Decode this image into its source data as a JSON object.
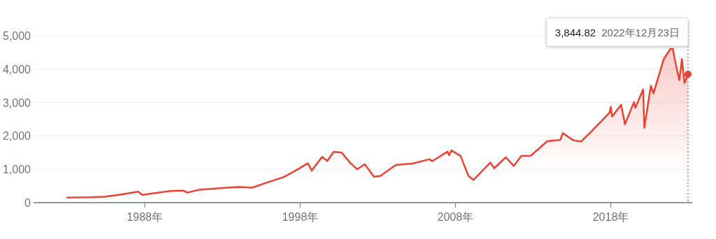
{
  "chart_data": {
    "type": "area",
    "x": [
      "1983-01",
      "1984-06",
      "1985-06",
      "1986-06",
      "1987-08",
      "1987-11",
      "1988-06",
      "1989-09",
      "1990-07",
      "1990-10",
      "1991-06",
      "1993-01",
      "1994-02",
      "1994-12",
      "1995-12",
      "1996-12",
      "1997-09",
      "1998-07",
      "1998-10",
      "1999-06",
      "1999-10",
      "2000-03",
      "2000-09",
      "2001-04",
      "2001-09",
      "2002-03",
      "2002-10",
      "2003-03",
      "2004-03",
      "2005-04",
      "2006-05",
      "2006-07",
      "2007-07",
      "2007-08",
      "2007-10",
      "2008-05",
      "2008-11",
      "2009-03",
      "2010-04",
      "2010-07",
      "2011-04",
      "2011-10",
      "2012-04",
      "2012-11",
      "2013-12",
      "2014-10",
      "2014-12",
      "2015-08",
      "2016-02",
      "2016-10",
      "2017-12",
      "2018-01",
      "2018-02",
      "2018-09",
      "2018-12",
      "2019-07",
      "2019-08",
      "2020-02",
      "2020-03",
      "2020-08",
      "2020-10",
      "2021-06",
      "2021-11",
      "2022-01",
      "2022-03",
      "2022-06",
      "2022-08",
      "2022-10",
      "2022-12-23"
    ],
    "series": [
      {
        "color": "#ea4335",
        "values": [
          150,
          160,
          180,
          240,
          330,
          230,
          270,
          350,
          360,
          300,
          380,
          440,
          470,
          450,
          610,
          760,
          950,
          1180,
          960,
          1370,
          1250,
          1520,
          1500,
          1180,
          1000,
          1150,
          780,
          800,
          1130,
          1170,
          1300,
          1240,
          1530,
          1420,
          1560,
          1400,
          800,
          680,
          1200,
          1030,
          1360,
          1100,
          1400,
          1400,
          1840,
          1880,
          2080,
          1870,
          1830,
          2130,
          2690,
          2870,
          2580,
          2930,
          2350,
          3010,
          2840,
          3390,
          2240,
          3500,
          3270,
          4300,
          4600,
          4600,
          4200,
          3670,
          4300,
          3580,
          3844.82
        ]
      }
    ],
    "xlim": [
      "1980-11",
      "2023-04"
    ],
    "xticks": [
      {
        "value": "1988-01",
        "label": "1988年"
      },
      {
        "value": "1998-01",
        "label": "1998年"
      },
      {
        "value": "2008-01",
        "label": "2008年"
      },
      {
        "value": "2018-01",
        "label": "2018年"
      }
    ],
    "ylim": [
      0,
      5000
    ],
    "yticks": [
      0,
      {
        "value": 1000,
        "label": "1,000"
      },
      {
        "value": 2000,
        "label": "2,000"
      },
      {
        "value": 3000,
        "label": "3,000"
      },
      {
        "value": 4000,
        "label": "4,000"
      },
      {
        "value": 5000,
        "label": "5,000"
      }
    ],
    "grid": "y",
    "ref_lines": [
      {
        "axis": "x",
        "value": "2022-12-23",
        "line_style": "dotted",
        "color": "#555555"
      }
    ],
    "annotations": [
      "3,844.82 2022年12月23日"
    ]
  }
}
